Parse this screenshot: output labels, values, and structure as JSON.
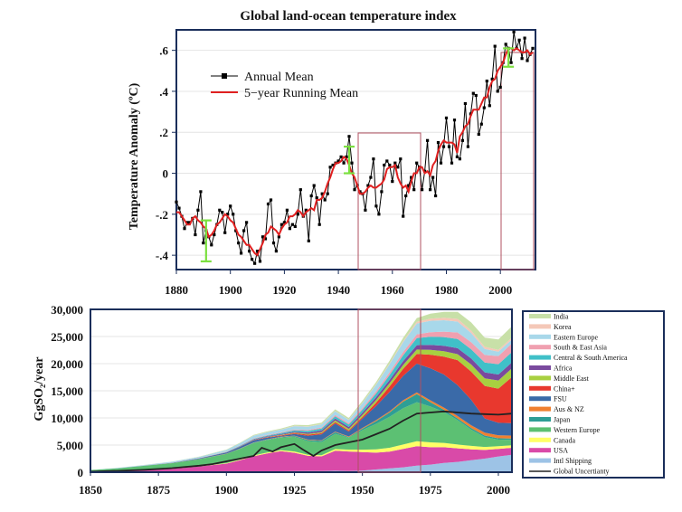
{
  "chart_data": [
    {
      "type": "line",
      "title": "Global land-ocean temperature index",
      "ylabel": "Temperature Anomaly (ºC)",
      "xlim": [
        1880,
        2013
      ],
      "ylim": [
        -0.47,
        0.7
      ],
      "x_ticks": [
        1880,
        1900,
        1920,
        1940,
        1960,
        1980,
        2000
      ],
      "y_ticks": [
        {
          "v": 0.6,
          "label": ".6"
        },
        {
          "v": 0.4,
          "label": ".4"
        },
        {
          "v": 0.2,
          "label": ".2"
        },
        {
          "v": 0.0,
          "label": "0"
        },
        {
          "v": -0.2,
          "label": "-.2"
        },
        {
          "v": -0.4,
          "label": "-.4"
        }
      ],
      "legend": [
        "Annual Mean",
        "5−year Running Mean"
      ],
      "colors": {
        "annual": "#000000",
        "running": "#e02020",
        "error_bars": "#7ce040",
        "highlight": "#b05060"
      },
      "series": [
        {
          "name": "Annual Mean",
          "x_start": 1880,
          "values": [
            -0.14,
            -0.17,
            -0.21,
            -0.27,
            -0.24,
            -0.24,
            -0.22,
            -0.3,
            -0.18,
            -0.09,
            -0.34,
            -0.28,
            -0.31,
            -0.35,
            -0.3,
            -0.25,
            -0.18,
            -0.19,
            -0.29,
            -0.2,
            -0.16,
            -0.2,
            -0.28,
            -0.34,
            -0.39,
            -0.28,
            -0.24,
            -0.38,
            -0.42,
            -0.44,
            -0.38,
            -0.43,
            -0.31,
            -0.32,
            -0.15,
            -0.13,
            -0.34,
            -0.38,
            -0.31,
            -0.25,
            -0.24,
            -0.18,
            -0.27,
            -0.25,
            -0.26,
            -0.2,
            -0.08,
            -0.21,
            -0.18,
            -0.33,
            -0.11,
            -0.06,
            -0.12,
            -0.25,
            -0.1,
            -0.13,
            -0.1,
            0.03,
            0.04,
            0.05,
            0.06,
            0.08,
            0.05,
            0.08,
            0.18,
            0.05,
            -0.08,
            -0.06,
            -0.09,
            -0.1,
            -0.18,
            -0.06,
            -0.02,
            0.07,
            -0.16,
            -0.2,
            -0.09,
            0.04,
            0.06,
            0.04,
            -0.04,
            0.05,
            0.03,
            0.07,
            -0.21,
            -0.11,
            -0.06,
            -0.02,
            -0.08,
            0.05,
            0.03,
            -0.08,
            0.01,
            0.16,
            -0.08,
            -0.02,
            -0.11,
            0.15,
            0.05,
            0.13,
            0.27,
            0.13,
            0.05,
            0.26,
            0.08,
            0.07,
            0.16,
            0.34,
            0.13,
            0.29,
            0.39,
            0.38,
            0.19,
            0.24,
            0.32,
            0.45,
            0.33,
            0.46,
            0.62,
            0.4,
            0.42,
            0.54,
            0.63,
            0.61,
            0.54,
            0.69,
            0.61,
            0.65,
            0.56,
            0.66,
            0.55,
            0.58,
            0.61
          ],
          "running_mean": [
            -0.19,
            -0.19,
            -0.21,
            -0.23,
            -0.25,
            -0.25,
            -0.22,
            -0.21,
            -0.23,
            -0.24,
            -0.26,
            -0.27,
            -0.31,
            -0.3,
            -0.28,
            -0.25,
            -0.24,
            -0.22,
            -0.2,
            -0.21,
            -0.23,
            -0.24,
            -0.27,
            -0.3,
            -0.31,
            -0.33,
            -0.35,
            -0.35,
            -0.37,
            -0.39,
            -0.4,
            -0.37,
            -0.34,
            -0.3,
            -0.29,
            -0.26,
            -0.27,
            -0.28,
            -0.3,
            -0.27,
            -0.25,
            -0.24,
            -0.21,
            -0.21,
            -0.2,
            -0.18,
            -0.19,
            -0.21,
            -0.19,
            -0.18,
            -0.17,
            -0.18,
            -0.13,
            -0.13,
            -0.12,
            -0.09,
            -0.05,
            -0.02,
            0.02,
            0.05,
            0.05,
            0.06,
            0.08,
            0.07,
            0.04,
            0.0,
            -0.02,
            -0.06,
            -0.1,
            -0.1,
            -0.09,
            -0.07,
            -0.06,
            -0.07,
            -0.07,
            -0.06,
            -0.05,
            -0.03,
            0.02,
            0.03,
            0.03,
            0.04,
            -0.02,
            -0.05,
            -0.07,
            -0.06,
            -0.09,
            -0.04,
            0.0,
            0.0,
            0.03,
            0.03,
            0.0,
            0.01,
            -0.01,
            0.04,
            0.06,
            0.11,
            0.14,
            0.16,
            0.15,
            0.15,
            0.15,
            0.14,
            0.1,
            0.18,
            0.2,
            0.23,
            0.24,
            0.28,
            0.31,
            0.31,
            0.31,
            0.34,
            0.37,
            0.37,
            0.42,
            0.45,
            0.46,
            0.5,
            0.52,
            0.54,
            0.58,
            0.61,
            0.61,
            0.6,
            0.61,
            0.6,
            0.59,
            0.59,
            0.6,
            0.58,
            0.59
          ]
        }
      ],
      "error_bars": [
        {
          "x": 1891,
          "low": -0.43,
          "high": -0.23
        },
        {
          "x": 1944,
          "low": 0.0,
          "high": 0.13
        },
        {
          "x": 2003,
          "low": 0.52,
          "high": 0.61
        }
      ]
    },
    {
      "type": "area",
      "ylabel": "GgSO₂/year",
      "xlim": [
        1850,
        2005
      ],
      "ylim": [
        0,
        30000
      ],
      "x_ticks": [
        1850,
        1875,
        1900,
        1925,
        1950,
        1975,
        2000
      ],
      "y_ticks": [
        {
          "v": 30000,
          "label": "30,000"
        },
        {
          "v": 25000,
          "label": "25,000"
        },
        {
          "v": 20000,
          "label": "20,000"
        },
        {
          "v": 15000,
          "label": "15,000"
        },
        {
          "v": 10000,
          "label": "10,000"
        },
        {
          "v": 5000,
          "label": "5,000"
        },
        {
          "v": 0,
          "label": "0"
        }
      ],
      "x": [
        1850,
        1860,
        1870,
        1880,
        1890,
        1900,
        1905,
        1910,
        1915,
        1920,
        1925,
        1930,
        1935,
        1940,
        1945,
        1950,
        1955,
        1960,
        1965,
        1970,
        1975,
        1980,
        1985,
        1990,
        1995,
        2000,
        2005
      ],
      "series": [
        {
          "name": "Intl Shipping",
          "color": "#9dc3e6",
          "values": [
            0,
            10,
            20,
            40,
            60,
            90,
            110,
            140,
            150,
            170,
            190,
            210,
            220,
            260,
            220,
            300,
            500,
            700,
            900,
            1200,
            1400,
            1700,
            1900,
            2200,
            2500,
            2900,
            3200
          ]
        },
        {
          "name": "USA",
          "color": "#d94aa8",
          "values": [
            100,
            200,
            350,
            600,
            1000,
            1500,
            2100,
            2800,
            3300,
            3700,
            3400,
            2800,
            2700,
            3700,
            3600,
            3400,
            3100,
            3100,
            3400,
            3600,
            3200,
            2900,
            2500,
            2000,
            1600,
            1400,
            1300
          ]
        },
        {
          "name": "Canada",
          "color": "#ffff66",
          "values": [
            0,
            5,
            10,
            20,
            40,
            80,
            100,
            150,
            180,
            200,
            220,
            200,
            220,
            300,
            350,
            450,
            600,
            700,
            800,
            900,
            900,
            800,
            700,
            650,
            550,
            500,
            450
          ]
        },
        {
          "name": "Western Europe",
          "color": "#5cc073",
          "values": [
            300,
            500,
            800,
            1000,
            1300,
            1700,
            2000,
            2300,
            2300,
            2300,
            2700,
            2500,
            2400,
            2800,
            2200,
            3600,
            4700,
            5700,
            6700,
            7200,
            6600,
            5700,
            4500,
            3000,
            1800,
            1200,
            1000
          ]
        },
        {
          "name": "Japan",
          "color": "#2e9e95",
          "values": [
            0,
            0,
            0,
            5,
            10,
            20,
            30,
            50,
            80,
            100,
            150,
            200,
            250,
            300,
            100,
            250,
            500,
            800,
            1200,
            1500,
            800,
            400,
            300,
            300,
            300,
            250,
            250
          ]
        },
        {
          "name": "Aus & NZ",
          "color": "#f08030",
          "values": [
            0,
            0,
            5,
            10,
            20,
            30,
            40,
            50,
            60,
            70,
            80,
            100,
            100,
            120,
            120,
            150,
            180,
            200,
            250,
            300,
            350,
            400,
            450,
            500,
            550,
            550,
            550
          ]
        },
        {
          "name": "FSU",
          "color": "#3a6aa8",
          "values": [
            0,
            10,
            20,
            50,
            100,
            200,
            300,
            400,
            300,
            150,
            300,
            700,
            1100,
            1500,
            900,
            1700,
            2600,
            3600,
            4500,
            5300,
            5900,
            6100,
            5700,
            4700,
            2600,
            2300,
            2300
          ]
        },
        {
          "name": "China+",
          "color": "#e8382e",
          "values": [
            0,
            0,
            0,
            0,
            10,
            20,
            30,
            50,
            80,
            100,
            150,
            200,
            200,
            250,
            200,
            300,
            600,
            1000,
            1300,
            1800,
            2500,
            3300,
            4600,
            5200,
            6000,
            6300,
            8500
          ]
        },
        {
          "name": "Middle East",
          "color": "#a8d040",
          "values": [
            0,
            0,
            0,
            0,
            0,
            10,
            20,
            30,
            50,
            80,
            100,
            150,
            200,
            300,
            300,
            400,
            500,
            600,
            700,
            800,
            900,
            1000,
            1100,
            1300,
            1400,
            1500,
            1600
          ]
        },
        {
          "name": "Africa",
          "color": "#7a4a9e",
          "values": [
            0,
            0,
            5,
            10,
            20,
            40,
            60,
            80,
            100,
            150,
            200,
            250,
            300,
            350,
            350,
            400,
            500,
            600,
            700,
            800,
            900,
            1000,
            1100,
            1100,
            1100,
            1100,
            1100
          ]
        },
        {
          "name": "Central & South America",
          "color": "#40c0c8",
          "values": [
            0,
            5,
            10,
            20,
            30,
            50,
            70,
            100,
            150,
            200,
            250,
            300,
            350,
            400,
            450,
            550,
            700,
            900,
            1100,
            1300,
            1500,
            1600,
            1700,
            1700,
            1800,
            1900,
            1900
          ]
        },
        {
          "name": "South & East Asia",
          "color": "#f0a0b0",
          "values": [
            0,
            5,
            10,
            20,
            30,
            50,
            70,
            90,
            100,
            120,
            150,
            180,
            200,
            250,
            250,
            300,
            400,
            500,
            600,
            700,
            850,
            1000,
            1200,
            1300,
            1400,
            1500,
            1600
          ]
        },
        {
          "name": "Eastern Europe",
          "color": "#a8d8ea",
          "values": [
            20,
            50,
            100,
            150,
            200,
            300,
            400,
            500,
            500,
            500,
            600,
            600,
            600,
            700,
            600,
            900,
            1200,
            1500,
            1800,
            2000,
            2100,
            2100,
            2000,
            1700,
            1100,
            800,
            700
          ]
        },
        {
          "name": "Korea",
          "color": "#f4c8b8",
          "values": [
            0,
            0,
            0,
            0,
            0,
            0,
            5,
            10,
            20,
            30,
            40,
            50,
            50,
            60,
            50,
            60,
            100,
            150,
            200,
            300,
            400,
            450,
            500,
            450,
            400,
            350,
            350
          ]
        },
        {
          "name": "India",
          "color": "#c8e0a8",
          "values": [
            0,
            10,
            20,
            30,
            50,
            80,
            100,
            130,
            150,
            180,
            200,
            230,
            250,
            300,
            300,
            350,
            400,
            500,
            600,
            700,
            900,
            1100,
            1300,
            1500,
            1700,
            1900,
            2100
          ]
        }
      ],
      "global_uncertainty": {
        "name": "Global Uncertianty",
        "color": "#222222",
        "x": [
          1850,
          1860,
          1870,
          1880,
          1890,
          1895,
          1900,
          1905,
          1910,
          1913,
          1917,
          1920,
          1925,
          1928,
          1932,
          1935,
          1940,
          1945,
          1950,
          1955,
          1960,
          1965,
          1970,
          1975,
          1980,
          1985,
          1990,
          1995,
          2000,
          2005
        ],
        "values": [
          100,
          250,
          450,
          750,
          1200,
          1500,
          2000,
          2500,
          3000,
          4500,
          3800,
          4600,
          5200,
          4200,
          3000,
          4000,
          5000,
          5500,
          6000,
          7000,
          8000,
          9500,
          10800,
          11000,
          11200,
          11000,
          10800,
          10700,
          10600,
          10800
        ]
      }
    }
  ]
}
